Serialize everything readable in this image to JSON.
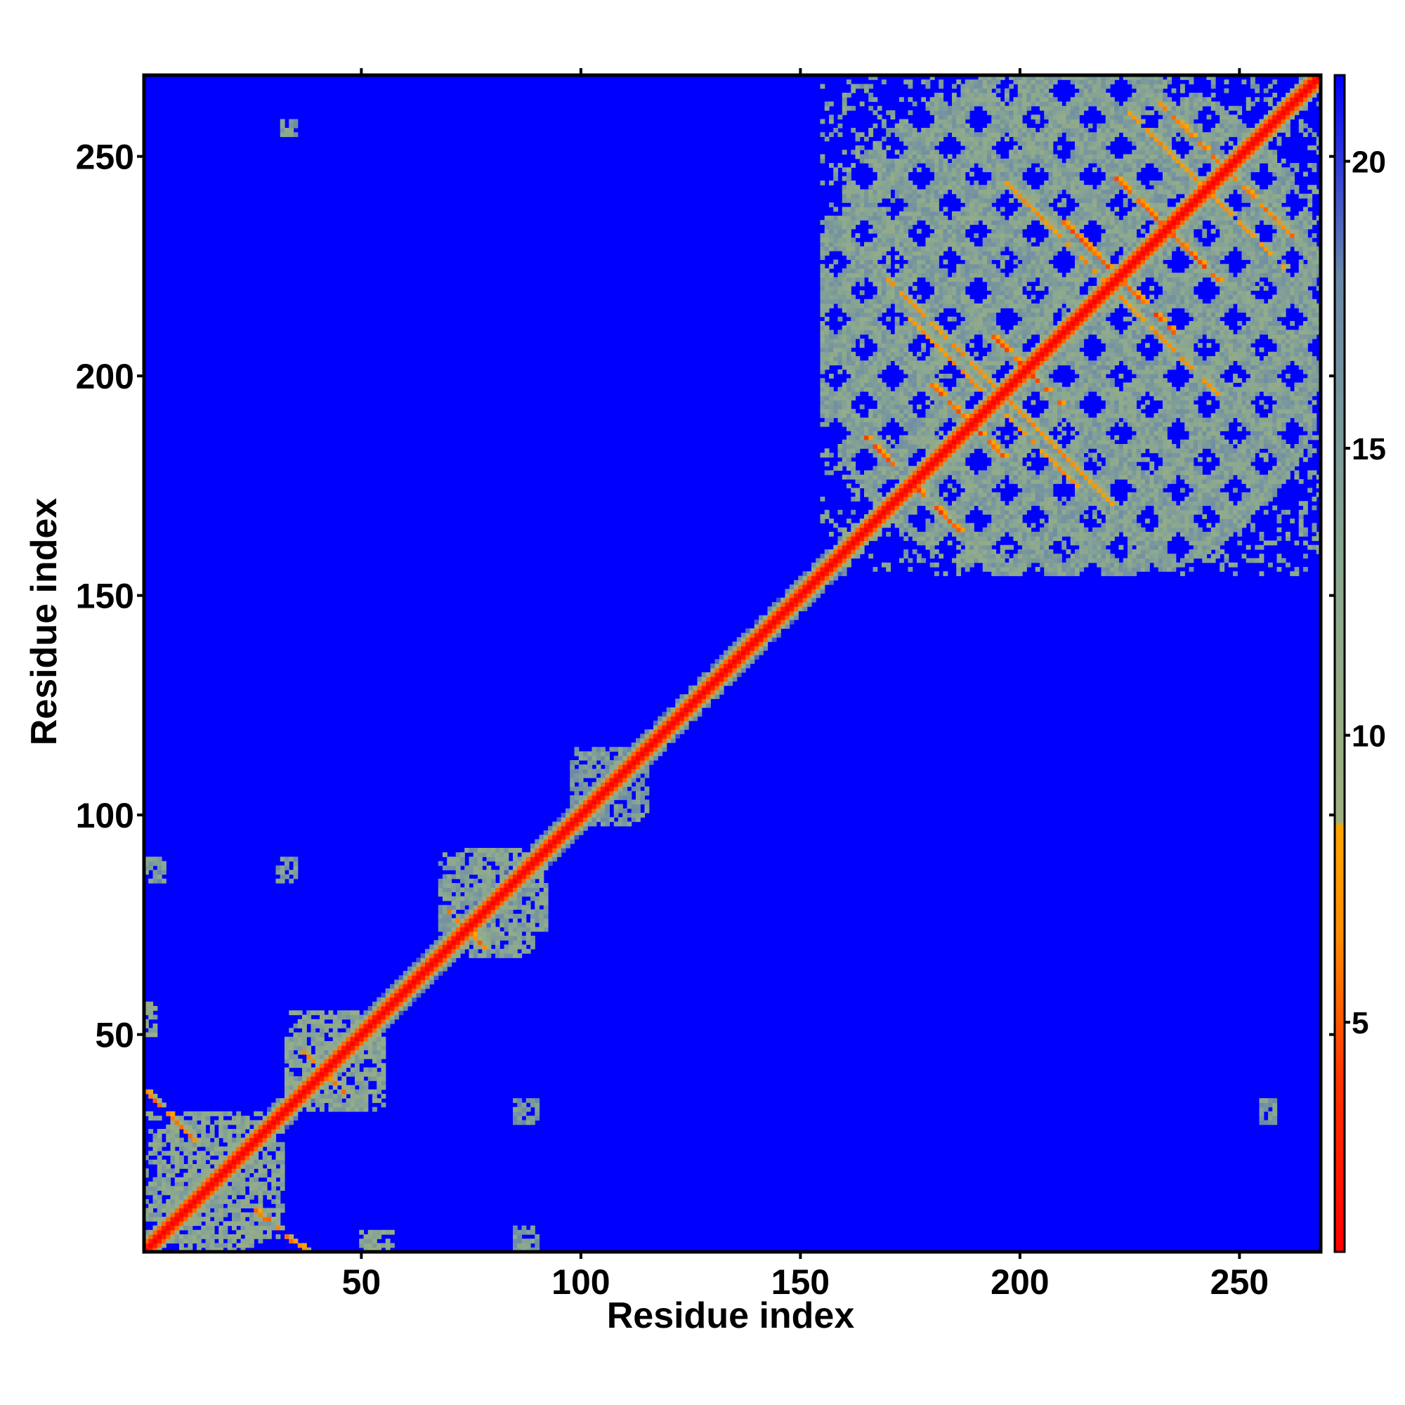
{
  "chart_data": {
    "type": "heatmap",
    "title": "",
    "xlabel": "Residue index",
    "ylabel": "Residue index",
    "xlim": [
      1,
      268
    ],
    "ylim": [
      1,
      268
    ],
    "xticks": [
      50,
      100,
      150,
      200,
      250
    ],
    "yticks": [
      50,
      100,
      150,
      200,
      250
    ],
    "xtick_labels": [
      "50",
      "100",
      "150",
      "200",
      "250"
    ],
    "ytick_labels": [
      "50",
      "100",
      "150",
      "200",
      "250"
    ],
    "colorbar": {
      "range": [
        1,
        21.5
      ],
      "ticks": [
        5,
        10,
        15,
        20
      ],
      "tick_labels": [
        "5",
        "10",
        "15",
        "20"
      ],
      "stops": [
        {
          "value": 1,
          "color": "#ff0000"
        },
        {
          "value": 4,
          "color": "#ff3300"
        },
        {
          "value": 6.5,
          "color": "#ff8c00"
        },
        {
          "value": 8.4,
          "color": "#ffa500"
        },
        {
          "value": 8.5,
          "color": "#9fb080"
        },
        {
          "value": 13,
          "color": "#8aa890"
        },
        {
          "value": 18,
          "color": "#6a88a8"
        },
        {
          "value": 21.5,
          "color": "#0000ff"
        }
      ]
    },
    "background_value": 21.5,
    "diagonal": {
      "start": 1,
      "end": 268,
      "value": 2.5
    },
    "near_diagonal_band": {
      "start": 30,
      "end": 160,
      "width": 4,
      "value": 12
    },
    "contact_blocks": [
      {
        "x": [
          155,
          268
        ],
        "y": [
          155,
          268
        ],
        "value": 14
      },
      {
        "x": [
          1,
          32
        ],
        "y": [
          1,
          32
        ],
        "value": 13
      },
      {
        "x": [
          33,
          55
        ],
        "y": [
          33,
          55
        ],
        "value": 13
      },
      {
        "x": [
          68,
          92
        ],
        "y": [
          68,
          92
        ],
        "value": 14
      },
      {
        "x": [
          98,
          115
        ],
        "y": [
          98,
          115
        ],
        "value": 15
      },
      {
        "x": [
          1,
          3
        ],
        "y": [
          50,
          57
        ],
        "value": 12
      },
      {
        "x": [
          1,
          5
        ],
        "y": [
          85,
          90
        ],
        "value": 15
      },
      {
        "x": [
          31,
          35
        ],
        "y": [
          85,
          90
        ],
        "value": 15
      },
      {
        "x": [
          31,
          35
        ],
        "y": [
          255,
          258
        ],
        "value": 15
      },
      {
        "x": [
          85,
          90
        ],
        "y": [
          1,
          6
        ],
        "value": 15
      },
      {
        "x": [
          85,
          90
        ],
        "y": [
          30,
          35
        ],
        "value": 15
      },
      {
        "x": [
          255,
          258
        ],
        "y": [
          30,
          35
        ],
        "value": 15
      },
      {
        "x": [
          50,
          57
        ],
        "y": [
          1,
          5
        ],
        "value": 12
      }
    ],
    "contact_lines": [
      {
        "from": [
          1,
          37
        ],
        "to": [
          12,
          26
        ],
        "value": 6
      },
      {
        "from": [
          26,
          10
        ],
        "to": [
          37,
          1
        ],
        "value": 6
      },
      {
        "from": [
          37,
          46
        ],
        "to": [
          46,
          37
        ],
        "value": 6
      },
      {
        "from": [
          70,
          78
        ],
        "to": [
          78,
          70
        ],
        "value": 6
      },
      {
        "from": [
          165,
          186
        ],
        "to": [
          186,
          165
        ],
        "value": 5
      },
      {
        "from": [
          180,
          198
        ],
        "to": [
          198,
          180
        ],
        "value": 5
      },
      {
        "from": [
          193,
          210
        ],
        "to": [
          210,
          193
        ],
        "value": 5
      },
      {
        "from": [
          210,
          235
        ],
        "to": [
          235,
          210
        ],
        "value": 5
      },
      {
        "from": [
          222,
          245
        ],
        "to": [
          245,
          222
        ],
        "value": 5
      },
      {
        "from": [
          232,
          262
        ],
        "to": [
          262,
          232
        ],
        "value": 6
      },
      {
        "from": [
          170,
          222
        ],
        "to": [
          222,
          170
        ],
        "value": 7
      },
      {
        "from": [
          196,
          245
        ],
        "to": [
          245,
          196
        ],
        "value": 7
      },
      {
        "from": [
          225,
          260
        ],
        "to": [
          260,
          225
        ],
        "value": 7
      },
      {
        "from": [
          175,
          213
        ],
        "to": [
          213,
          175
        ],
        "value": 7
      }
    ]
  }
}
